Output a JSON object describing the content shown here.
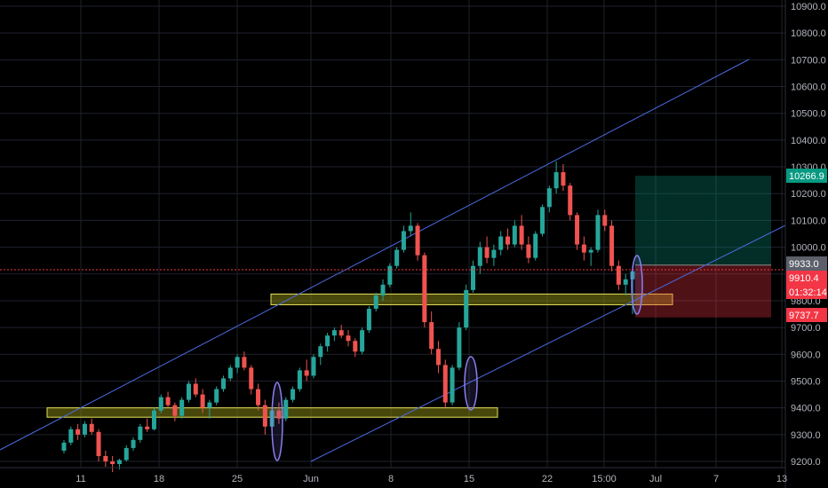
{
  "chart_data": {
    "type": "candlestick",
    "y_axis": {
      "ylim": [
        9200,
        10900
      ],
      "ticks": [
        "9200.0",
        "9300.0",
        "9400.0",
        "9500.0",
        "9600.0",
        "9700.0",
        "9800.0",
        "9900.0",
        "10000.0",
        "10100.0",
        "10200.0",
        "10300.0",
        "10400.0",
        "10500.0",
        "10600.0",
        "10700.0",
        "10800.0",
        "10900.0"
      ]
    },
    "x_axis": {
      "ticks": [
        "11",
        "18",
        "25",
        "Jun",
        "8",
        "15",
        "22",
        "15:00",
        "Jul",
        "7",
        "13"
      ]
    },
    "price_badges": [
      {
        "label": "10266.9",
        "value": 10266.9,
        "color": "#089981"
      },
      {
        "label": "9933.0",
        "value": 9933.0,
        "color": "#5d606b"
      },
      {
        "label": "9910.4",
        "value": 9910.4,
        "color": "#f23645"
      },
      {
        "label": "01:32:14",
        "value": 9830,
        "color": "#f23645"
      },
      {
        "label": "9737.7",
        "value": 9737.7,
        "color": "#f23645"
      }
    ],
    "position": {
      "target": 10266.9,
      "entry": 9933.0,
      "stop": 9737.7
    },
    "support_zones": [
      {
        "low": 9785,
        "high": 9825
      },
      {
        "low": 9365,
        "high": 9400
      }
    ],
    "candles": [
      [
        9240,
        9280,
        9230,
        9270
      ],
      [
        9270,
        9330,
        9260,
        9320
      ],
      [
        9320,
        9340,
        9280,
        9300
      ],
      [
        9300,
        9350,
        9290,
        9340
      ],
      [
        9340,
        9360,
        9300,
        9310
      ],
      [
        9310,
        9320,
        9200,
        9220
      ],
      [
        9220,
        9240,
        9180,
        9200
      ],
      [
        9200,
        9220,
        9160,
        9190
      ],
      [
        9190,
        9210,
        9170,
        9205
      ],
      [
        9205,
        9260,
        9200,
        9250
      ],
      [
        9250,
        9290,
        9240,
        9280
      ],
      [
        9280,
        9340,
        9270,
        9330
      ],
      [
        9330,
        9360,
        9310,
        9320
      ],
      [
        9320,
        9400,
        9315,
        9390
      ],
      [
        9390,
        9450,
        9380,
        9440
      ],
      [
        9440,
        9460,
        9400,
        9410
      ],
      [
        9410,
        9420,
        9350,
        9370
      ],
      [
        9370,
        9440,
        9360,
        9430
      ],
      [
        9430,
        9500,
        9420,
        9490
      ],
      [
        9490,
        9510,
        9440,
        9450
      ],
      [
        9450,
        9470,
        9380,
        9400
      ],
      [
        9400,
        9430,
        9360,
        9420
      ],
      [
        9420,
        9480,
        9410,
        9470
      ],
      [
        9470,
        9520,
        9460,
        9510
      ],
      [
        9510,
        9560,
        9500,
        9550
      ],
      [
        9550,
        9600,
        9530,
        9590
      ],
      [
        9590,
        9610,
        9540,
        9550
      ],
      [
        9550,
        9560,
        9450,
        9470
      ],
      [
        9470,
        9490,
        9390,
        9410
      ],
      [
        9410,
        9430,
        9300,
        9330
      ],
      [
        9330,
        9400,
        9320,
        9390
      ],
      [
        9390,
        9420,
        9340,
        9360
      ],
      [
        9360,
        9440,
        9350,
        9430
      ],
      [
        9430,
        9480,
        9420,
        9470
      ],
      [
        9470,
        9550,
        9460,
        9540
      ],
      [
        9540,
        9580,
        9500,
        9520
      ],
      [
        9520,
        9600,
        9510,
        9590
      ],
      [
        9590,
        9640,
        9560,
        9630
      ],
      [
        9630,
        9680,
        9610,
        9670
      ],
      [
        9670,
        9700,
        9650,
        9690
      ],
      [
        9690,
        9710,
        9660,
        9670
      ],
      [
        9670,
        9690,
        9630,
        9650
      ],
      [
        9650,
        9660,
        9590,
        9610
      ],
      [
        9610,
        9700,
        9600,
        9690
      ],
      [
        9690,
        9780,
        9680,
        9770
      ],
      [
        9770,
        9830,
        9760,
        9820
      ],
      [
        9820,
        9880,
        9800,
        9860
      ],
      [
        9860,
        9940,
        9850,
        9930
      ],
      [
        9930,
        10000,
        9920,
        9990
      ],
      [
        9990,
        10080,
        9980,
        10060
      ],
      [
        10060,
        10130,
        10040,
        10080
      ],
      [
        10080,
        10090,
        9950,
        9970
      ],
      [
        9970,
        9980,
        9700,
        9720
      ],
      [
        9720,
        9760,
        9600,
        9620
      ],
      [
        9620,
        9650,
        9530,
        9560
      ],
      [
        9560,
        9580,
        9400,
        9420
      ],
      [
        9420,
        9560,
        9410,
        9550
      ],
      [
        9550,
        9720,
        9540,
        9700
      ],
      [
        9700,
        9860,
        9690,
        9840
      ],
      [
        9840,
        9950,
        9830,
        9930
      ],
      [
        9930,
        10020,
        9900,
        10000
      ],
      [
        10000,
        10040,
        9940,
        9960
      ],
      [
        9960,
        10010,
        9930,
        9990
      ],
      [
        9990,
        10060,
        9970,
        10040
      ],
      [
        10040,
        10070,
        9990,
        10010
      ],
      [
        10010,
        10100,
        10000,
        10080
      ],
      [
        10080,
        10120,
        9990,
        10010
      ],
      [
        10010,
        10040,
        9940,
        9960
      ],
      [
        9960,
        10060,
        9950,
        10050
      ],
      [
        10050,
        10160,
        10040,
        10150
      ],
      [
        10150,
        10230,
        10130,
        10220
      ],
      [
        10220,
        10320,
        10200,
        10280
      ],
      [
        10280,
        10310,
        10210,
        10230
      ],
      [
        10230,
        10240,
        10100,
        10120
      ],
      [
        10120,
        10130,
        9990,
        10010
      ],
      [
        10010,
        10040,
        9950,
        9980
      ],
      [
        9980,
        10000,
        9930,
        9990
      ],
      [
        9990,
        10140,
        9980,
        10120
      ],
      [
        10120,
        10140,
        10060,
        10080
      ],
      [
        10080,
        10100,
        9910,
        9930
      ],
      [
        9930,
        9950,
        9840,
        9860
      ],
      [
        9860,
        9900,
        9820,
        9880
      ],
      [
        9880,
        9920,
        9750,
        9910
      ]
    ]
  }
}
